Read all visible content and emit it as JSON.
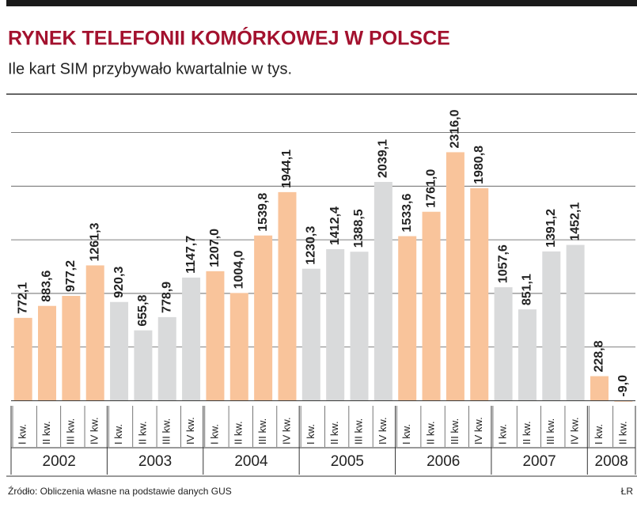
{
  "chart_data": {
    "type": "bar",
    "title": "RYNEK TELEFONII KOMÓRKOWEJ W POLSCE",
    "subtitle": "Ile kart SIM przybywało kwartalnie w tys.",
    "source": "Źródło: Obliczenia własne na podstawie danych GUS",
    "credit": "ŁR",
    "ylim": [
      -40,
      2850
    ],
    "yticks": [
      500,
      1000,
      1500,
      2000,
      2500
    ],
    "grid": true,
    "groups": [
      {
        "name": "2002",
        "color": "#f9c49b",
        "categories": [
          "I kw.",
          "II kw.",
          "III kw.",
          "IV kw."
        ],
        "values": [
          772.1,
          883.6,
          977.2,
          1261.3
        ],
        "value_labels": [
          "772,1",
          "883,6",
          "977,2",
          "1261,3"
        ]
      },
      {
        "name": "2003",
        "color": "#d9dadb",
        "categories": [
          "I kw.",
          "II kw.",
          "III kw.",
          "IV kw."
        ],
        "values": [
          920.3,
          655.8,
          778.9,
          1147.7
        ],
        "value_labels": [
          "920,3",
          "655,8",
          "778,9",
          "1147,7"
        ]
      },
      {
        "name": "2004",
        "color": "#f9c49b",
        "categories": [
          "I kw.",
          "II kw.",
          "III kw.",
          "IV kw."
        ],
        "values": [
          1207.0,
          1004.0,
          1539.8,
          1944.1
        ],
        "value_labels": [
          "1207,0",
          "1004,0",
          "1539,8",
          "1944,1"
        ]
      },
      {
        "name": "2005",
        "color": "#d9dadb",
        "categories": [
          "I kw.",
          "II kw.",
          "III kw.",
          "IV kw."
        ],
        "values": [
          1230.3,
          1412.4,
          1388.5,
          2039.1
        ],
        "value_labels": [
          "1230,3",
          "1412,4",
          "1388,5",
          "2039,1"
        ]
      },
      {
        "name": "2006",
        "color": "#f9c49b",
        "categories": [
          "I kw.",
          "II kw.",
          "III kw.",
          "IV kw."
        ],
        "values": [
          1533.6,
          1761.0,
          2316.0,
          1980.8
        ],
        "value_labels": [
          "1533,6",
          "1761,0",
          "2316,0",
          "1980,8"
        ]
      },
      {
        "name": "2007",
        "color": "#d9dadb",
        "categories": [
          "I kw.",
          "II kw.",
          "III kw.",
          "IV kw."
        ],
        "values": [
          1057.6,
          851.1,
          1391.2,
          1452.1
        ],
        "value_labels": [
          "1057,6",
          "851,1",
          "1391,2",
          "1452,1"
        ]
      },
      {
        "name": "2008",
        "color": "#f9c49b",
        "categories": [
          "I kw.",
          "II kw."
        ],
        "values": [
          228.8,
          -9.0
        ],
        "value_labels": [
          "228,8",
          "-9,0"
        ]
      }
    ]
  }
}
